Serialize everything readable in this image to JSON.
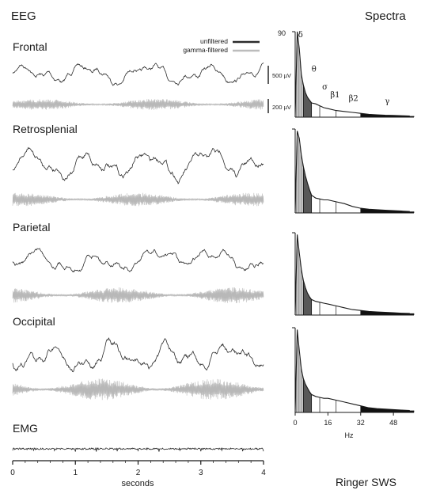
{
  "chart_data": [
    {
      "type": "line",
      "title": "EEG",
      "xlabel": "seconds",
      "xlim": [
        0,
        4
      ],
      "x_ticks": [
        "0",
        "1",
        "2",
        "3",
        "4"
      ],
      "legend": {
        "placement": "top-right",
        "entries": [
          "unfiltered",
          "gamma-filtered"
        ]
      },
      "scale_bars": [
        "500 µV",
        "200 µV"
      ],
      "colors": {
        "unfiltered": "#2b2b2b",
        "gamma": "#b8b8b8"
      },
      "channels": [
        {
          "name": "Frontal",
          "amp": 1.0,
          "gamma": 1.0
        },
        {
          "name": "Retrosplenial",
          "amp": 1.4,
          "gamma": 1.2
        },
        {
          "name": "Parietal",
          "amp": 1.1,
          "gamma": 1.4
        },
        {
          "name": "Occipital",
          "amp": 1.5,
          "gamma": 1.9
        },
        {
          "name": "EMG",
          "amp": 0.08,
          "gamma": 0
        }
      ]
    },
    {
      "type": "area",
      "title": "Spectra",
      "xlabel": "Hz",
      "xlim": [
        0,
        58
      ],
      "x_ticks": [
        0,
        16,
        32,
        48
      ],
      "y_tick_label": "90",
      "ylim": [
        0,
        90
      ],
      "bands": [
        {
          "label": "δ",
          "range": [
            0.5,
            4
          ]
        },
        {
          "label": "θ",
          "range": [
            4,
            8
          ]
        },
        {
          "label": "σ",
          "range": [
            8,
            12
          ]
        },
        {
          "label": "β1",
          "range": [
            12,
            20
          ]
        },
        {
          "label": "β2",
          "range": [
            20,
            32
          ]
        },
        {
          "label": "γ",
          "range": [
            32,
            58
          ]
        }
      ],
      "spectra": [
        {
          "name": "Frontal",
          "f": [
            0,
            1,
            2,
            3,
            4,
            5,
            6,
            7,
            8,
            10,
            12,
            14,
            16,
            20,
            24,
            28,
            32,
            36,
            40,
            44,
            48,
            52,
            56
          ],
          "p": [
            0,
            90,
            72,
            45,
            34,
            26,
            21,
            18,
            15,
            14,
            12,
            10,
            9,
            7,
            6,
            5,
            4,
            3,
            2.5,
            2,
            1.8,
            1.5,
            1.2
          ]
        },
        {
          "name": "Retrosplenial",
          "f": [
            0,
            1,
            2,
            3,
            4,
            5,
            6,
            7,
            8,
            10,
            12,
            14,
            16,
            20,
            24,
            28,
            32,
            36,
            40,
            44,
            48,
            52,
            56
          ],
          "p": [
            0,
            88,
            80,
            62,
            50,
            40,
            32,
            25,
            19,
            16,
            15,
            14,
            14,
            12,
            10,
            7,
            5,
            4,
            3.5,
            3,
            2.5,
            2,
            1.5
          ]
        },
        {
          "name": "Parietal",
          "f": [
            0,
            1,
            2,
            3,
            4,
            5,
            6,
            7,
            8,
            10,
            12,
            14,
            16,
            20,
            24,
            28,
            32,
            36,
            40,
            44,
            48,
            52,
            56
          ],
          "p": [
            0,
            88,
            68,
            50,
            38,
            30,
            24,
            20,
            17,
            15,
            14,
            13,
            12,
            10,
            8,
            6,
            5,
            4,
            3.5,
            3,
            2.5,
            2,
            1.8
          ]
        },
        {
          "name": "Occipital",
          "f": [
            0,
            1,
            2,
            3,
            4,
            5,
            6,
            7,
            8,
            10,
            12,
            14,
            16,
            20,
            24,
            28,
            32,
            36,
            40,
            44,
            48,
            52,
            56
          ],
          "p": [
            0,
            88,
            66,
            46,
            36,
            30,
            26,
            22,
            19,
            17,
            16,
            15,
            15,
            13,
            11,
            9,
            7,
            5,
            4,
            3.5,
            3,
            2.5,
            2
          ]
        }
      ]
    }
  ],
  "footer": "Ringer SWS"
}
